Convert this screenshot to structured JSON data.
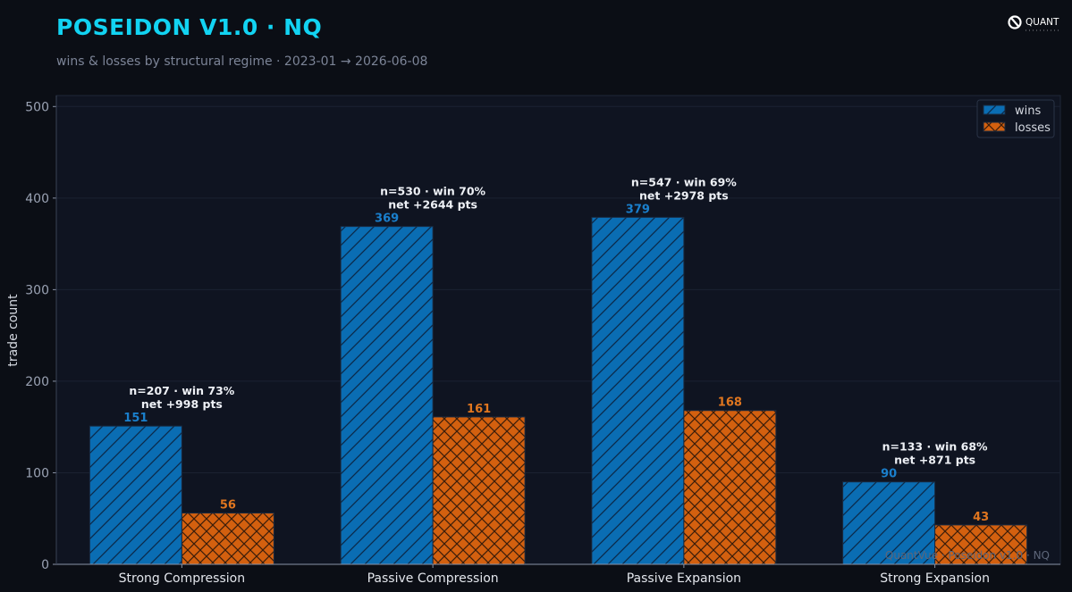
{
  "header": {
    "title": "POSEIDON V1.0 · NQ",
    "subtitle": "wins & losses by structural regime  ·  2023-01 → 2026-06-08",
    "brand_name": "QUANT"
  },
  "colors": {
    "background": "#0b0e15",
    "plot_background": "#0f1421",
    "title": "#12d3f2",
    "wins": "#0a6db3",
    "losses": "#d3600f",
    "wins_label": "#1a7fcc",
    "losses_label": "#e0761f"
  },
  "chart_data": {
    "type": "bar",
    "categories": [
      "Strong Compression",
      "Passive Compression",
      "Passive Expansion",
      "Strong Expansion"
    ],
    "series": [
      {
        "name": "wins",
        "values": [
          151,
          369,
          379,
          90
        ],
        "pattern": "diagonal-hatch"
      },
      {
        "name": "losses",
        "values": [
          56,
          161,
          168,
          43
        ],
        "pattern": "cross-hatch"
      }
    ],
    "annotations": [
      {
        "line1": "n=207 · win 73%",
        "line2": "net +998 pts"
      },
      {
        "line1": "n=530 · win 70%",
        "line2": "net +2644 pts"
      },
      {
        "line1": "n=547 · win 69%",
        "line2": "net +2978 pts"
      },
      {
        "line1": "n=133 · win 68%",
        "line2": "net +871 pts"
      }
    ],
    "ylabel": "trade count",
    "xlabel": "",
    "ylim": [
      0,
      512
    ],
    "yticks": [
      0,
      100,
      200,
      300,
      400,
      500
    ],
    "legend_position": "top-right",
    "grid": true,
    "watermark": "QuantVue · Poseidon v1.0 · NQ"
  }
}
